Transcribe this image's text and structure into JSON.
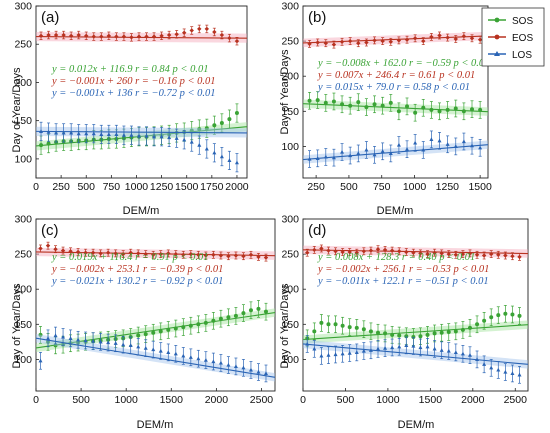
{
  "figure": {
    "ylabel": "Day of Year/Days",
    "xlabel": "DEM/m",
    "legend": [
      {
        "name": "SOS",
        "color": "#3aa335"
      },
      {
        "name": "EOS",
        "color": "#b83220"
      },
      {
        "name": "LOS",
        "color": "#2a64b5"
      }
    ]
  },
  "chart_data": [
    {
      "type": "line",
      "panel": "(a)",
      "xlim": [
        0,
        2100
      ],
      "ylim": [
        75,
        300
      ],
      "xticks": [
        0,
        250,
        500,
        750,
        1000,
        1250,
        1500,
        1750,
        2000
      ],
      "yticks": [
        100,
        150,
        200,
        250,
        300
      ],
      "grid": false,
      "equations": [
        {
          "series": "SOS",
          "text": "y = 0.012x + 116.9   r = 0.84   p < 0.01"
        },
        {
          "series": "EOS",
          "text": "y = −0.001x + 260   r = −0.16   p < 0.01"
        },
        {
          "series": "LOS",
          "text": "y = −0.001x + 136   r = −0.72   p < 0.01"
        }
      ],
      "series": [
        {
          "name": "SOS",
          "fit": [
            116.9,
            0.012
          ],
          "x0": 50,
          "x1": 2000,
          "values": [
            118,
            120,
            122,
            123,
            123,
            124,
            124,
            125,
            125,
            126,
            126,
            127,
            128,
            129,
            129,
            130,
            131,
            132,
            134,
            135,
            137,
            139,
            140,
            144,
            147,
            152,
            160
          ]
        },
        {
          "name": "EOS",
          "fit": [
            260,
            -0.001
          ],
          "x0": 50,
          "x1": 2000,
          "values": [
            261,
            262,
            262,
            262,
            261,
            262,
            261,
            260,
            260,
            261,
            260,
            260,
            259,
            260,
            260,
            260,
            261,
            262,
            263,
            265,
            268,
            270,
            270,
            266,
            262,
            258,
            254
          ]
        },
        {
          "name": "LOS",
          "fit": [
            136,
            -0.001
          ],
          "x0": 50,
          "x1": 2000,
          "values": [
            136,
            135,
            134,
            134,
            134,
            133,
            133,
            133,
            132,
            132,
            132,
            131,
            131,
            130,
            130,
            129,
            129,
            128,
            127,
            125,
            122,
            118,
            113,
            108,
            103,
            98,
            95
          ]
        }
      ]
    },
    {
      "type": "line",
      "panel": "(b)",
      "xlim": [
        150,
        1560
      ],
      "ylim": [
        55,
        300
      ],
      "xticks": [
        250,
        500,
        750,
        1000,
        1250,
        1500
      ],
      "yticks": [
        100,
        150,
        200,
        250,
        300
      ],
      "grid": false,
      "equations": [
        {
          "series": "SOS",
          "text": "y = −0.008x + 162.0   r = −0.59   p < 0.01"
        },
        {
          "series": "EOS",
          "text": "y = 0.007x + 246.4   r = 0.61   p < 0.01"
        },
        {
          "series": "LOS",
          "text": "y = 0.015x + 79.0   r = 0.58   p < 0.01"
        }
      ],
      "series": [
        {
          "name": "SOS",
          "fit": [
            162.0,
            -0.008
          ],
          "x0": 200,
          "x1": 1500,
          "values": [
            165,
            166,
            162,
            164,
            160,
            158,
            163,
            156,
            160,
            158,
            162,
            150,
            157,
            148,
            155,
            152,
            150,
            152,
            154,
            150,
            153,
            152
          ]
        },
        {
          "name": "EOS",
          "fit": [
            246.4,
            0.007
          ],
          "x0": 200,
          "x1": 1500,
          "values": [
            246,
            248,
            247,
            245,
            249,
            250,
            247,
            248,
            251,
            250,
            249,
            251,
            252,
            254,
            250,
            256,
            258,
            255,
            253,
            257,
            254,
            252
          ]
        },
        {
          "name": "LOS",
          "fit": [
            79.0,
            0.015
          ],
          "x0": 200,
          "x1": 1500,
          "values": [
            82,
            83,
            85,
            84,
            92,
            87,
            90,
            95,
            88,
            93,
            90,
            102,
            96,
            105,
            95,
            110,
            108,
            103,
            100,
            107,
            101,
            98
          ]
        }
      ]
    },
    {
      "type": "line",
      "panel": "(c)",
      "xlim": [
        0,
        2650
      ],
      "ylim": [
        55,
        300
      ],
      "xticks": [
        0,
        500,
        1000,
        1500,
        2000,
        2500
      ],
      "yticks": [
        100,
        150,
        200,
        250,
        300
      ],
      "grid": false,
      "equations": [
        {
          "series": "SOS",
          "text": "y = 0.019x + 116.4   r = 0.91   p < 0.01"
        },
        {
          "series": "EOS",
          "text": "y = −0.002x + 253.1   r = −0.39   p < 0.01"
        },
        {
          "series": "LOS",
          "text": "y = −0.021x + 130.2   r = −0.92   p < 0.01"
        }
      ],
      "series": [
        {
          "name": "SOS",
          "fit": [
            116.4,
            0.019
          ],
          "x0": 50,
          "x1": 2550,
          "values": [
            135,
            125,
            120,
            121,
            123,
            124,
            125,
            126,
            127,
            128,
            129,
            130,
            132,
            134,
            136,
            138,
            140,
            142,
            144,
            146,
            148,
            150,
            152,
            155,
            158,
            160,
            162,
            166,
            170,
            172,
            168
          ]
        },
        {
          "name": "EOS",
          "fit": [
            253.1,
            -0.002
          ],
          "x0": 50,
          "x1": 2550,
          "values": [
            258,
            262,
            257,
            255,
            254,
            253,
            252,
            252,
            251,
            252,
            251,
            250,
            252,
            251,
            250,
            249,
            250,
            251,
            250,
            249,
            250,
            249,
            248,
            249,
            248,
            247,
            248,
            247,
            249,
            246,
            245
          ]
        },
        {
          "name": "LOS",
          "fit": [
            130.2,
            -0.021
          ],
          "x0": 50,
          "x1": 2550,
          "values": [
            98,
            130,
            134,
            132,
            130,
            128,
            127,
            126,
            125,
            124,
            123,
            121,
            120,
            118,
            116,
            114,
            112,
            110,
            108,
            105,
            103,
            101,
            99,
            97,
            95,
            92,
            90,
            88,
            85,
            82,
            80
          ]
        }
      ]
    },
    {
      "type": "line",
      "panel": "(d)",
      "xlim": [
        0,
        2650
      ],
      "ylim": [
        55,
        300
      ],
      "xticks": [
        0,
        500,
        1000,
        1500,
        2000,
        2500
      ],
      "yticks": [
        100,
        150,
        200,
        250,
        300
      ],
      "grid": false,
      "equations": [
        {
          "series": "SOS",
          "text": "y = 0.008x + 128.3   r = 0.40   p < 0.01"
        },
        {
          "series": "EOS",
          "text": "y = −0.002x + 256.1   r = −0.53   p < 0.01"
        },
        {
          "series": "LOS",
          "text": "y = −0.011x + 122.1   r = −0.51   p < 0.01"
        }
      ],
      "series": [
        {
          "name": "SOS",
          "fit": [
            128.3,
            0.008
          ],
          "x0": 50,
          "x1": 2550,
          "values": [
            130,
            140,
            152,
            150,
            150,
            148,
            146,
            145,
            143,
            140,
            138,
            137,
            135,
            134,
            133,
            132,
            133,
            135,
            137,
            138,
            139,
            140,
            142,
            145,
            150,
            155,
            160,
            163,
            165,
            164,
            162
          ]
        },
        {
          "name": "EOS",
          "fit": [
            256.1,
            -0.002
          ],
          "x0": 50,
          "x1": 2550,
          "values": [
            252,
            256,
            258,
            255,
            254,
            253,
            253,
            252,
            254,
            255,
            257,
            256,
            255,
            254,
            253,
            252,
            251,
            250,
            252,
            251,
            250,
            249,
            250,
            251,
            249,
            248,
            250,
            249,
            248,
            247,
            246
          ]
        },
        {
          "name": "LOS",
          "fit": [
            122.1,
            -0.011
          ],
          "x0": 50,
          "x1": 2550,
          "values": [
            122,
            115,
            105,
            106,
            107,
            108,
            109,
            110,
            112,
            113,
            115,
            116,
            117,
            118,
            120,
            119,
            117,
            118,
            115,
            113,
            112,
            110,
            108,
            106,
            100,
            93,
            88,
            85,
            82,
            80,
            78
          ]
        }
      ]
    }
  ]
}
